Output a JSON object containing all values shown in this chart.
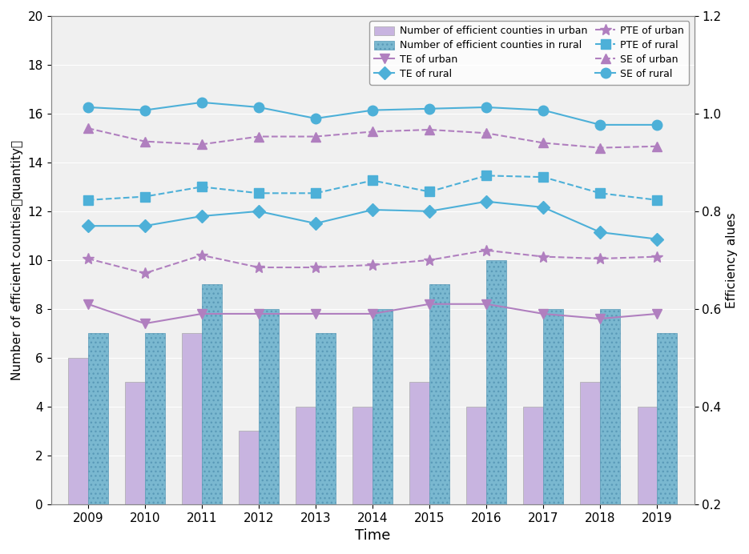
{
  "years": [
    2009,
    2010,
    2011,
    2012,
    2013,
    2014,
    2015,
    2016,
    2017,
    2018,
    2019
  ],
  "bar_urban": [
    6,
    5,
    7,
    3,
    4,
    4,
    5,
    4,
    4,
    5,
    4
  ],
  "bar_rural": [
    7,
    7,
    9,
    8,
    7,
    8,
    9,
    10,
    8,
    8,
    7
  ],
  "TE_urban": [
    0.61,
    0.57,
    0.59,
    0.59,
    0.59,
    0.59,
    0.61,
    0.61,
    0.59,
    0.58,
    0.59
  ],
  "TE_rural": [
    0.77,
    0.77,
    0.79,
    0.8,
    0.775,
    0.803,
    0.8,
    0.82,
    0.808,
    0.757,
    0.743
  ],
  "PTE_urban": [
    0.703,
    0.673,
    0.71,
    0.685,
    0.685,
    0.69,
    0.7,
    0.72,
    0.707,
    0.703,
    0.707
  ],
  "PTE_rural": [
    0.823,
    0.83,
    0.85,
    0.837,
    0.837,
    0.863,
    0.84,
    0.873,
    0.87,
    0.837,
    0.823
  ],
  "SE_urban": [
    0.97,
    0.943,
    0.937,
    0.953,
    0.953,
    0.963,
    0.967,
    0.96,
    0.94,
    0.93,
    0.933
  ],
  "SE_rural": [
    1.013,
    1.007,
    1.023,
    1.013,
    0.99,
    1.007,
    1.01,
    1.013,
    1.007,
    0.977,
    0.977
  ],
  "bar_urban_color": "#c8b4e0",
  "bar_rural_color": "#7ab8d0",
  "bar_rural_hatch_color": "#5a9ab8",
  "line_urban_color": "#b07fbf",
  "line_rural_color": "#4db0d8",
  "ylim_left": [
    0,
    20
  ],
  "ylim_right": [
    0.2,
    1.2
  ],
  "ylabel_left": "Number of efficient counties（quantity）",
  "ylabel_right": "Efficiency alues",
  "xlabel": "Time",
  "yticks_left": [
    0,
    2,
    4,
    6,
    8,
    10,
    12,
    14,
    16,
    18,
    20
  ],
  "yticks_right": [
    0.2,
    0.4,
    0.6,
    0.8,
    1.0,
    1.2
  ],
  "legend_items": [
    "Number of efficient counties in urban",
    "Number of efficient counties in rural",
    "TE of urban",
    "TE of rural",
    "PTE of urban",
    "PTE of rural",
    "SE of urban",
    "SE of rural"
  ],
  "bg_color": "#f0f0f0"
}
